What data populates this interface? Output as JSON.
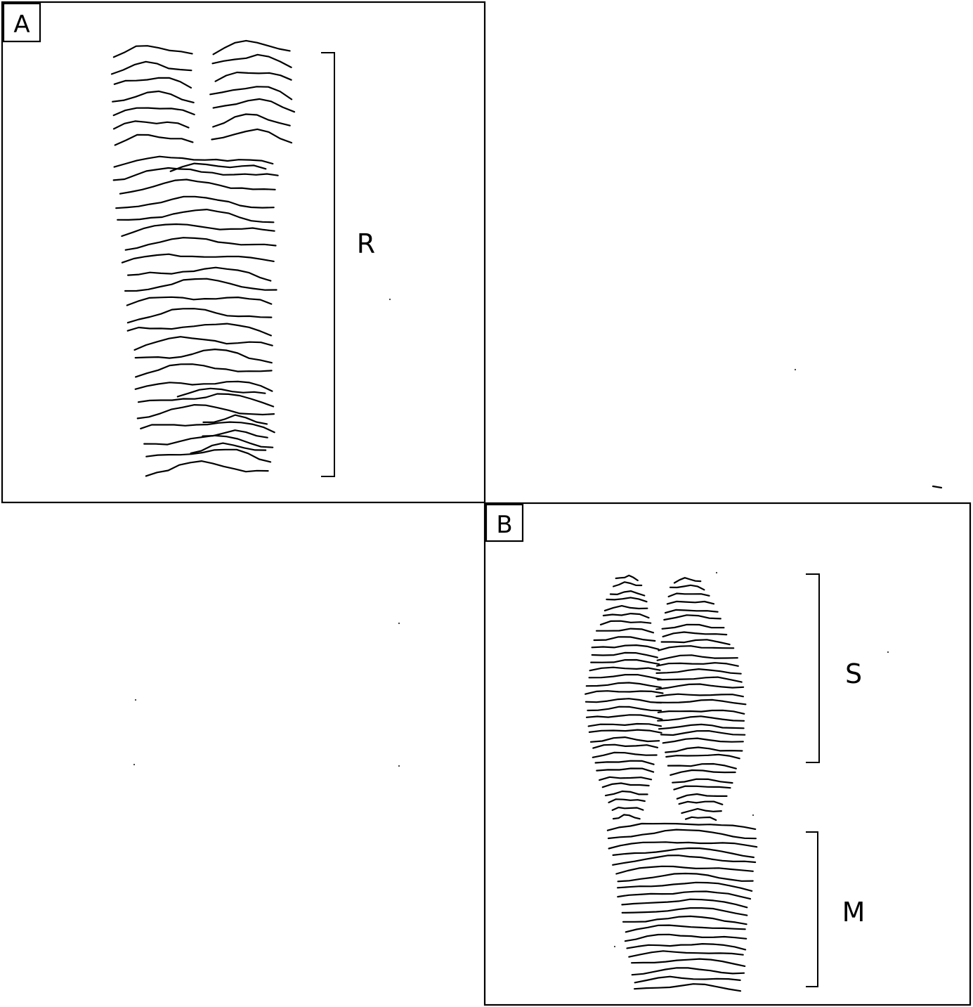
{
  "panels": [
    {
      "id": "A",
      "label": "A",
      "regions": [
        {
          "label": "R"
        }
      ]
    },
    {
      "id": "B",
      "label": "B",
      "regions": [
        {
          "label": "S"
        },
        {
          "label": "M"
        }
      ]
    }
  ],
  "colors": {
    "ink": "#000000",
    "background": "#ffffff"
  }
}
